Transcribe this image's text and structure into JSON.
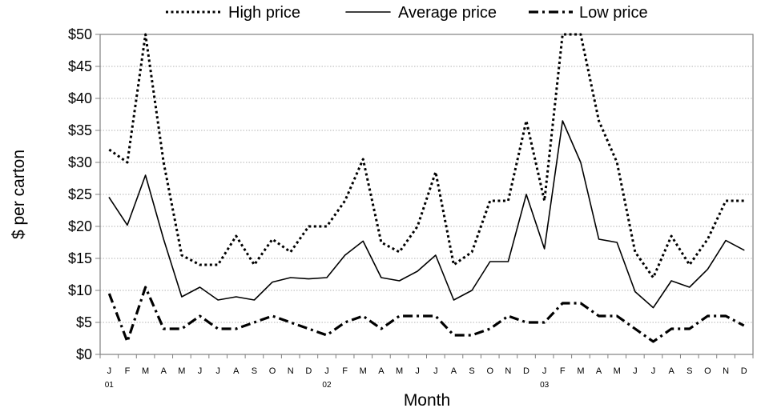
{
  "chart_data": {
    "type": "line",
    "xlabel": "Month",
    "ylabel": "$ per carton",
    "ylim": [
      0,
      50
    ],
    "yticks": [
      "$0",
      "$5",
      "$10",
      "$15",
      "$20",
      "$25",
      "$30",
      "$35",
      "$40",
      "$45",
      "$50"
    ],
    "x": [
      "J",
      "F",
      "M",
      "A",
      "M",
      "J",
      "J",
      "A",
      "S",
      "O",
      "N",
      "D",
      "J",
      "F",
      "M",
      "A",
      "M",
      "J",
      "J",
      "A",
      "S",
      "O",
      "N",
      "D",
      "J",
      "F",
      "M",
      "A",
      "M",
      "J",
      "J",
      "A",
      "S",
      "O",
      "N",
      "D"
    ],
    "years": [
      {
        "label": "01",
        "start_index": 0
      },
      {
        "label": "02",
        "start_index": 12
      },
      {
        "label": "03",
        "start_index": 24
      }
    ],
    "grid": "horizontal dotted",
    "legend_placement": "top",
    "series": [
      {
        "name": "High price",
        "style": "dotted",
        "color": "#000000",
        "values": [
          32,
          30,
          50,
          30,
          15.5,
          14,
          14,
          18.5,
          14,
          18,
          16,
          20,
          20,
          24,
          30.5,
          17.5,
          16,
          20,
          28.5,
          14,
          16,
          24,
          24,
          36.5,
          24,
          50,
          50,
          36.5,
          30,
          16,
          12,
          18.5,
          14,
          18,
          24,
          24
        ]
      },
      {
        "name": "Average price",
        "style": "solid",
        "color": "#000000",
        "values": [
          24.5,
          20.2,
          28,
          18,
          9,
          10.5,
          8.5,
          9,
          8.5,
          11.3,
          12,
          11.8,
          12,
          15.5,
          17.7,
          12,
          11.5,
          13,
          15.5,
          8.5,
          10,
          14.5,
          14.5,
          25,
          16.5,
          36.5,
          30,
          18,
          17.5,
          9.8,
          7.3,
          11.5,
          10.5,
          13.3,
          17.8,
          16.3
        ]
      },
      {
        "name": "Low price",
        "style": "dash-dot",
        "color": "#000000",
        "values": [
          9.5,
          2,
          10.5,
          4,
          4,
          6,
          4,
          4,
          5,
          6,
          5,
          4,
          3,
          5,
          6,
          4,
          6,
          6,
          6,
          3,
          3,
          4,
          6,
          5,
          5,
          8,
          8,
          6,
          6,
          4,
          2,
          4,
          4,
          6,
          6,
          4.5
        ]
      }
    ]
  }
}
